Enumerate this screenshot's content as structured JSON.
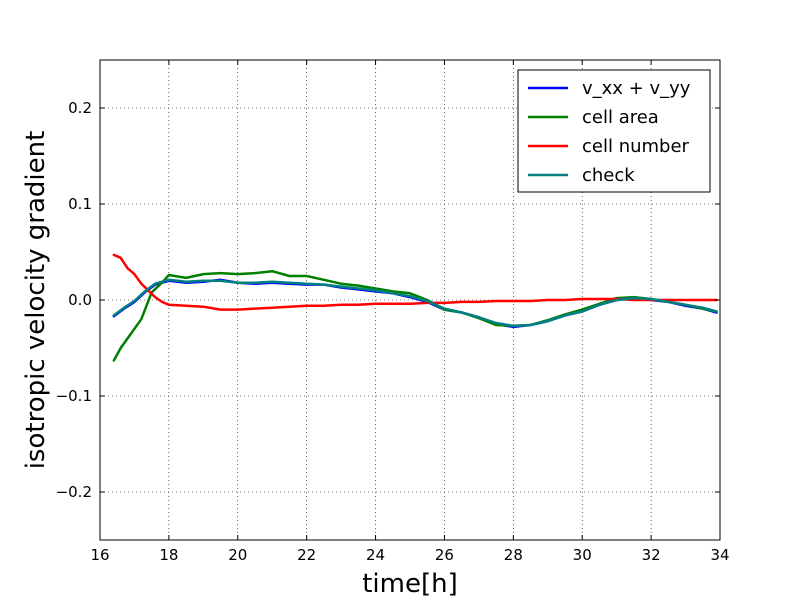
{
  "chart_data": {
    "type": "line",
    "title": "",
    "xlabel": "time[h]",
    "ylabel": "isotropic velocity gradient",
    "xlim": [
      16,
      34
    ],
    "ylim": [
      -0.25,
      0.25
    ],
    "xticks": [
      16,
      18,
      20,
      22,
      24,
      26,
      28,
      30,
      32,
      34
    ],
    "yticks": [
      -0.2,
      -0.1,
      0.0,
      0.1,
      0.2
    ],
    "xtick_labels": [
      "16",
      "18",
      "20",
      "22",
      "24",
      "26",
      "28",
      "30",
      "32",
      "34"
    ],
    "ytick_labels": [
      "−0.2",
      "−0.1",
      "0.0",
      "0.1",
      "0.2"
    ],
    "grid": true,
    "legend_position": "top-right",
    "series": [
      {
        "name": "v_xx + v_yy",
        "color": "#0000ff",
        "x": [
          16.4,
          16.7,
          17.0,
          17.3,
          17.6,
          18.0,
          18.5,
          19.0,
          19.5,
          20.0,
          20.5,
          21.0,
          21.5,
          22.0,
          22.5,
          23.0,
          23.5,
          24.0,
          24.5,
          25.0,
          25.5,
          26.0,
          26.5,
          27.0,
          27.5,
          28.0,
          28.5,
          29.0,
          29.5,
          30.0,
          30.5,
          31.0,
          31.5,
          32.0,
          32.5,
          33.0,
          33.5,
          33.9
        ],
        "y": [
          -0.017,
          -0.009,
          -0.002,
          0.008,
          0.016,
          0.02,
          0.018,
          0.019,
          0.021,
          0.018,
          0.017,
          0.018,
          0.017,
          0.016,
          0.016,
          0.013,
          0.011,
          0.009,
          0.007,
          0.003,
          -0.002,
          -0.01,
          -0.013,
          -0.018,
          -0.025,
          -0.028,
          -0.026,
          -0.022,
          -0.016,
          -0.012,
          -0.005,
          0.0,
          0.002,
          0.0,
          -0.002,
          -0.006,
          -0.009,
          -0.013
        ]
      },
      {
        "name": "cell area",
        "color": "#008000",
        "x": [
          16.4,
          16.6,
          16.9,
          17.2,
          17.5,
          17.8,
          18.0,
          18.5,
          19.0,
          19.5,
          20.0,
          20.5,
          21.0,
          21.5,
          22.0,
          22.5,
          23.0,
          23.5,
          24.0,
          24.5,
          25.0,
          25.5,
          26.0,
          26.5,
          27.0,
          27.5,
          28.0,
          28.5,
          29.0,
          29.5,
          30.0,
          30.5,
          31.0,
          31.5,
          32.0,
          32.5,
          33.0,
          33.5,
          33.9
        ],
        "y": [
          -0.063,
          -0.05,
          -0.035,
          -0.02,
          0.008,
          0.018,
          0.026,
          0.023,
          0.027,
          0.028,
          0.027,
          0.028,
          0.03,
          0.025,
          0.025,
          0.021,
          0.017,
          0.015,
          0.012,
          0.009,
          0.007,
          0.0,
          -0.01,
          -0.013,
          -0.019,
          -0.026,
          -0.027,
          -0.026,
          -0.021,
          -0.015,
          -0.01,
          -0.004,
          0.002,
          0.003,
          0.001,
          -0.002,
          -0.005,
          -0.009,
          -0.012
        ]
      },
      {
        "name": "cell number",
        "color": "#ff0000",
        "x": [
          16.4,
          16.6,
          16.8,
          17.0,
          17.2,
          17.4,
          17.6,
          17.8,
          18.0,
          18.5,
          19.0,
          19.5,
          20.0,
          20.5,
          21.0,
          21.5,
          22.0,
          22.5,
          23.0,
          23.5,
          24.0,
          24.5,
          25.0,
          25.5,
          26.0,
          26.5,
          27.0,
          27.5,
          28.0,
          28.5,
          29.0,
          29.5,
          30.0,
          30.5,
          31.0,
          31.5,
          32.0,
          32.5,
          33.0,
          33.5,
          33.9
        ],
        "y": [
          0.047,
          0.044,
          0.033,
          0.027,
          0.017,
          0.01,
          0.003,
          -0.002,
          -0.005,
          -0.006,
          -0.007,
          -0.01,
          -0.01,
          -0.009,
          -0.008,
          -0.007,
          -0.006,
          -0.006,
          -0.005,
          -0.005,
          -0.004,
          -0.004,
          -0.004,
          -0.003,
          -0.003,
          -0.002,
          -0.002,
          -0.001,
          -0.001,
          -0.001,
          0.0,
          0.0,
          0.001,
          0.001,
          0.001,
          0.0,
          0.0,
          0.0,
          0.0,
          0.0,
          0.0
        ]
      },
      {
        "name": "check",
        "color": "#008080",
        "x": [
          16.4,
          16.7,
          17.0,
          17.3,
          17.6,
          18.0,
          18.5,
          19.0,
          19.5,
          20.0,
          20.5,
          21.0,
          21.5,
          22.0,
          22.5,
          23.0,
          23.5,
          24.0,
          24.5,
          25.0,
          25.5,
          26.0,
          26.5,
          27.0,
          27.5,
          28.0,
          28.5,
          29.0,
          29.5,
          30.0,
          30.5,
          31.0,
          31.5,
          32.0,
          32.5,
          33.0,
          33.5,
          33.9
        ],
        "y": [
          -0.016,
          -0.008,
          -0.001,
          0.009,
          0.017,
          0.021,
          0.019,
          0.02,
          0.02,
          0.018,
          0.018,
          0.019,
          0.018,
          0.017,
          0.016,
          0.014,
          0.012,
          0.01,
          0.007,
          0.004,
          -0.001,
          -0.009,
          -0.013,
          -0.018,
          -0.024,
          -0.027,
          -0.026,
          -0.022,
          -0.016,
          -0.012,
          -0.005,
          0.0,
          0.002,
          0.001,
          -0.002,
          -0.005,
          -0.008,
          -0.012
        ]
      }
    ]
  }
}
